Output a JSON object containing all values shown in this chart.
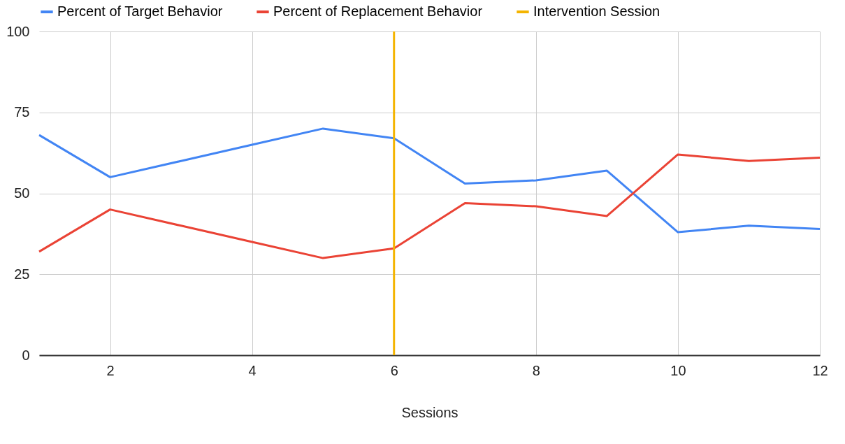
{
  "chart_data": {
    "type": "line",
    "xlabel": "Sessions",
    "x": [
      1,
      2,
      3,
      4,
      5,
      6,
      7,
      8,
      9,
      10,
      11,
      12
    ],
    "series": [
      {
        "name": "Percent of Target Behavior",
        "color": "#4285f4",
        "values": [
          68,
          55,
          60,
          65,
          70,
          67,
          53,
          54,
          57,
          38,
          40,
          39
        ]
      },
      {
        "name": "Percent of Replacement Behavior",
        "color": "#ea4335",
        "values": [
          32,
          45,
          40,
          35,
          30,
          33,
          47,
          46,
          43,
          62,
          60,
          61
        ]
      }
    ],
    "ref_lines": [
      {
        "axis": "x",
        "value": 6,
        "label": "Intervention Session",
        "color": "#f4b400"
      }
    ],
    "xlim": [
      1,
      12
    ],
    "xticks": [
      2,
      4,
      6,
      8,
      10,
      12
    ],
    "ylim": [
      0,
      100
    ],
    "yticks": [
      0,
      25,
      50,
      75,
      100
    ],
    "grid": true,
    "legend": "top"
  }
}
